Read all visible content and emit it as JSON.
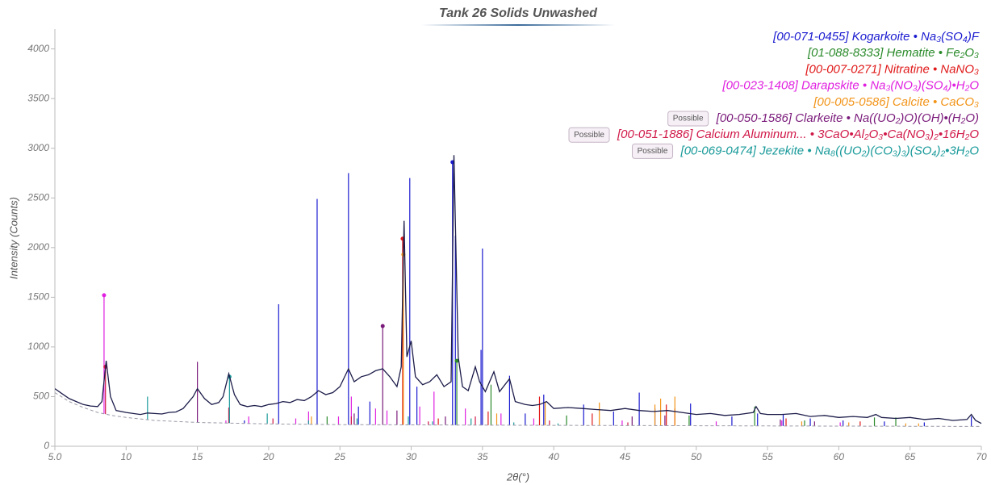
{
  "chart_data": {
    "type": "line",
    "title": "Tank 26 Solids Unwashed",
    "xlabel": "2θ(°)",
    "ylabel": "Intensity (Counts)",
    "xlim": [
      5,
      70
    ],
    "ylim": [
      0,
      4200
    ],
    "xticks": [
      {
        "value": 5,
        "label": "5.0"
      },
      10,
      15,
      20,
      25,
      30,
      35,
      40,
      45,
      50,
      55,
      60,
      65,
      70
    ],
    "yticks": [
      0,
      500,
      1000,
      1500,
      2000,
      2500,
      3000,
      3500,
      4000
    ],
    "series": [
      {
        "color": "#1c1c4a",
        "dashed": false,
        "x": [
          5,
          5.5,
          6,
          6.5,
          7,
          7.5,
          8,
          8.3,
          8.6,
          8.9,
          9.3,
          10,
          10.5,
          11,
          11.5,
          12,
          12.5,
          13,
          13.5,
          14,
          14.7,
          15,
          15.5,
          16,
          16.5,
          16.8,
          17.2,
          17.6,
          18,
          18.5,
          19,
          19.5,
          20,
          20.5,
          21,
          21.5,
          22,
          22.5,
          23,
          23.5,
          24,
          24.5,
          25,
          25.6,
          26,
          26.5,
          27,
          27.5,
          28,
          28.5,
          29,
          29.3,
          29.5,
          29.7,
          30,
          30.3,
          30.8,
          31.3,
          31.8,
          32.3,
          32.8,
          33,
          33.3,
          33.6,
          34,
          34.5,
          34.8,
          35.2,
          35.8,
          36.2,
          36.9,
          37.3,
          38,
          38.5,
          39,
          39.5,
          40,
          41,
          42,
          43,
          44,
          45,
          46,
          47,
          48,
          49,
          50,
          51,
          52,
          53,
          54,
          54.2,
          54.5,
          55,
          56,
          57,
          58,
          59,
          60,
          61,
          62,
          62.6,
          63,
          64,
          65,
          66,
          67,
          68,
          69,
          69.3,
          69.6,
          70
        ],
        "values": [
          580,
          530,
          480,
          450,
          420,
          405,
          400,
          450,
          860,
          500,
          360,
          340,
          330,
          320,
          335,
          330,
          325,
          340,
          345,
          380,
          500,
          580,
          480,
          420,
          440,
          500,
          730,
          520,
          420,
          400,
          410,
          400,
          420,
          430,
          450,
          440,
          470,
          460,
          500,
          560,
          520,
          540,
          600,
          780,
          650,
          700,
          720,
          760,
          780,
          700,
          600,
          800,
          2270,
          900,
          1060,
          700,
          620,
          650,
          720,
          600,
          650,
          2930,
          900,
          600,
          560,
          800,
          650,
          550,
          750,
          550,
          680,
          450,
          420,
          410,
          420,
          450,
          380,
          390,
          380,
          370,
          360,
          380,
          360,
          350,
          360,
          340,
          320,
          330,
          310,
          320,
          340,
          400,
          330,
          320,
          320,
          330,
          300,
          310,
          290,
          300,
          290,
          320,
          290,
          280,
          290,
          270,
          280,
          260,
          270,
          320,
          260,
          230
        ]
      },
      {
        "color": "#9a9aa8",
        "dashed": true,
        "x": [
          5,
          6,
          7,
          8,
          9,
          10,
          12,
          15,
          20,
          25,
          30,
          40,
          55,
          70
        ],
        "values": [
          540,
          450,
          390,
          340,
          310,
          290,
          260,
          240,
          225,
          218,
          215,
          210,
          205,
          200
        ]
      }
    ],
    "phases": [
      {
        "name": "[00-071-0455] Kogarkoite • Na₃(SO₄)F",
        "color": "#1a1ad0",
        "x": [
          18.3,
          20.7,
          23.4,
          25.6,
          26.3,
          27.1,
          29.9,
          30.4,
          32.9,
          33.1,
          34.9,
          35.0,
          36.9,
          38.0,
          39.3,
          42.1,
          44.2,
          46.0,
          47.1,
          49.6,
          52.5,
          54.3,
          56.1,
          58.0,
          60.3,
          63.2,
          66.0,
          69.3
        ],
        "values": [
          260,
          1430,
          2490,
          2750,
          400,
          450,
          2700,
          600,
          2860,
          2120,
          970,
          1990,
          710,
          330,
          520,
          420,
          350,
          540,
          380,
          430,
          300,
          330,
          320,
          280,
          260,
          250,
          240,
          300
        ]
      },
      {
        "name": "[01-088-8333] Hematite • Fe₂O₃",
        "color": "#2a8a2a",
        "x": [
          24.1,
          33.2,
          35.6,
          40.9,
          49.5,
          54.1,
          57.6,
          62.5,
          64.0
        ],
        "values": [
          300,
          860,
          620,
          310,
          310,
          400,
          260,
          290,
          290
        ]
      },
      {
        "name": "[00-007-0271] Nitratine • NaNO₃",
        "color": "#e01818",
        "x": [
          29.4,
          31.9,
          35.4,
          39.0,
          42.7,
          47.9,
          48.5,
          56.3,
          61.5
        ],
        "values": [
          2090,
          280,
          350,
          500,
          330,
          420,
          380,
          280,
          250
        ]
      },
      {
        "name": "[00-023-1408] Darapskite • Na₃(NO₃)(SO₄)•H₂O",
        "color": "#e020e0",
        "x": [
          8.45,
          17.0,
          18.6,
          21.9,
          22.8,
          24.9,
          25.8,
          27.5,
          28.3,
          30.6,
          31.6,
          33.8,
          36.3,
          38.6,
          44.8,
          51.4,
          56.0,
          60.1
        ],
        "values": [
          1520,
          260,
          300,
          280,
          350,
          300,
          500,
          380,
          360,
          400,
          550,
          380,
          330,
          280,
          260,
          250,
          260,
          240
        ]
      },
      {
        "name": "[00-005-0586] Calcite • CaCO₃",
        "color": "#f29418",
        "x": [
          23.0,
          29.45,
          36.0,
          39.4,
          43.2,
          47.1,
          47.5,
          48.5,
          57.4,
          60.7,
          64.7,
          65.6
        ],
        "values": [
          300,
          1930,
          330,
          450,
          440,
          420,
          480,
          500,
          250,
          240,
          230,
          230
        ]
      },
      {
        "name": "[00-050-1586] Clarkeite • Na((UO₂)O)(OH)•(H₂O)",
        "color": "#7a1a7a",
        "badge": "Possible",
        "x": [
          15.0,
          26.0,
          28.0,
          29.0,
          32.4,
          45.5,
          47.8,
          55.9,
          58.3
        ],
        "values": [
          850,
          330,
          1210,
          360,
          300,
          300,
          310,
          270,
          250
        ]
      },
      {
        "name": "[00-051-1886] Calcium Aluminum... • 3CaO•Al₂O₃•Ca(NO₃)₂•16H₂O",
        "color": "#d01848",
        "badge": "Possible",
        "x": [
          8.55,
          17.2,
          20.3,
          25.8,
          31.2,
          34.5,
          39.7,
          45.2
        ],
        "values": [
          800,
          390,
          280,
          300,
          250,
          300,
          260,
          240
        ]
      },
      {
        "name": "[00-069-0474] Jezekite • Na₈((UO₂)(CO₃)₃)(SO₄)₂•3H₂O",
        "color": "#1a9a9a",
        "badge": "Possible",
        "x": [
          11.5,
          17.25,
          19.9,
          22.8,
          26.2,
          29.8,
          31.5,
          34.2,
          37.2,
          40.3
        ],
        "values": [
          500,
          700,
          330,
          260,
          280,
          300,
          250,
          280,
          240,
          230
        ]
      }
    ]
  }
}
